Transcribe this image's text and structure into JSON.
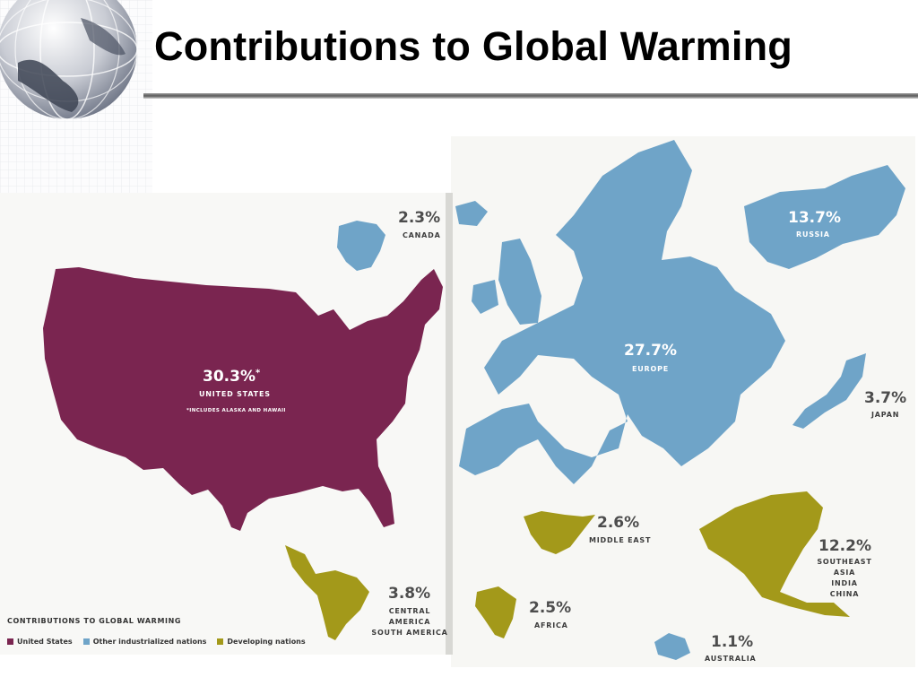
{
  "title": "Contributions to Global Warming",
  "colors": {
    "us": "#7a2550",
    "industrialized": "#6fa4c8",
    "developing": "#a3991a",
    "map_bg": "#f7f7f5"
  },
  "regions": [
    {
      "id": "us",
      "percent": "30.3%",
      "asterisk": "*",
      "name": "UNITED STATES",
      "note": "*INCLUDES ALASKA AND HAWAII",
      "category": "United States",
      "value": 30.3
    },
    {
      "id": "canada",
      "percent": "2.3%",
      "name": "CANADA",
      "category": "Other industrialized nations",
      "value": 2.3
    },
    {
      "id": "europe",
      "percent": "27.7%",
      "name": "EUROPE",
      "category": "Other industrialized nations",
      "value": 27.7
    },
    {
      "id": "russia",
      "percent": "13.7%",
      "name": "RUSSIA",
      "category": "Other industrialized nations",
      "value": 13.7
    },
    {
      "id": "japan",
      "percent": "3.7%",
      "name": "JAPAN",
      "category": "Other industrialized nations",
      "value": 3.7
    },
    {
      "id": "middle_east",
      "percent": "2.6%",
      "name": "MIDDLE EAST",
      "category": "Developing nations",
      "value": 2.6
    },
    {
      "id": "seasia",
      "percent": "12.2%",
      "name": [
        "SOUTHEAST ASIA",
        "INDIA",
        "CHINA"
      ],
      "category": "Developing nations",
      "value": 12.2
    },
    {
      "id": "latam",
      "percent": "3.8%",
      "name": [
        "CENTRAL AMERICA",
        "SOUTH AMERICA"
      ],
      "category": "Developing nations",
      "value": 3.8
    },
    {
      "id": "africa",
      "percent": "2.5%",
      "name": "AFRICA",
      "category": "Developing nations",
      "value": 2.5
    },
    {
      "id": "australia",
      "percent": "1.1%",
      "name": "AUSTRALIA",
      "category": "Other industrialized nations",
      "value": 1.1
    }
  ],
  "legend": {
    "title": "CONTRIBUTIONS TO GLOBAL WARMING",
    "items": [
      {
        "label": "United States",
        "color": "#7a2550"
      },
      {
        "label": "Other industrialized nations",
        "color": "#6fa4c8"
      },
      {
        "label": "Developing nations",
        "color": "#a3991a"
      }
    ]
  }
}
